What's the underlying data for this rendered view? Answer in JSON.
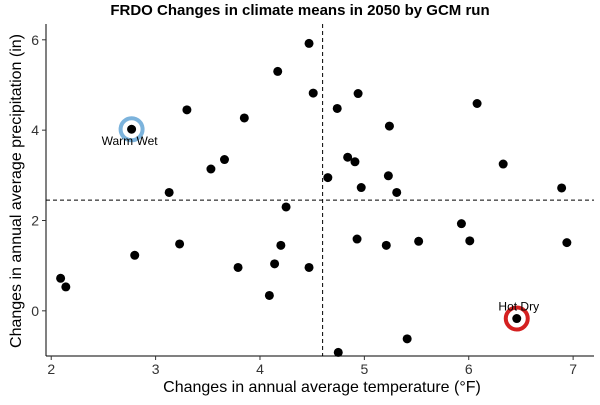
{
  "chart_data": {
    "type": "scatter",
    "title": "FRDO Changes in climate means in 2050 by GCM run",
    "xlabel": "Changes in annual average temperature (°F)",
    "ylabel": "Changes in annual average precipitation (in)",
    "xlim": [
      1.95,
      7.2
    ],
    "ylim": [
      -1.0,
      6.35
    ],
    "xticks": [
      2,
      3,
      4,
      5,
      6,
      7
    ],
    "yticks": [
      0,
      2,
      4,
      6
    ],
    "grid": false,
    "reference_lines": {
      "vline_x": 4.6,
      "hline_y": 2.45
    },
    "point_color": "#000000",
    "points": [
      {
        "x": 2.09,
        "y": 0.72
      },
      {
        "x": 2.14,
        "y": 0.53
      },
      {
        "x": 2.8,
        "y": 1.23
      },
      {
        "x": 3.13,
        "y": 2.62
      },
      {
        "x": 3.23,
        "y": 1.48
      },
      {
        "x": 3.3,
        "y": 4.45
      },
      {
        "x": 3.53,
        "y": 3.14
      },
      {
        "x": 3.66,
        "y": 3.35
      },
      {
        "x": 3.79,
        "y": 0.96
      },
      {
        "x": 3.85,
        "y": 4.27
      },
      {
        "x": 4.09,
        "y": 0.34
      },
      {
        "x": 4.14,
        "y": 1.04
      },
      {
        "x": 4.17,
        "y": 5.3
      },
      {
        "x": 4.2,
        "y": 1.45
      },
      {
        "x": 4.25,
        "y": 2.3
      },
      {
        "x": 4.47,
        "y": 5.92
      },
      {
        "x": 4.47,
        "y": 0.96
      },
      {
        "x": 4.51,
        "y": 4.82
      },
      {
        "x": 4.65,
        "y": 2.95
      },
      {
        "x": 4.74,
        "y": 4.48
      },
      {
        "x": 4.75,
        "y": -0.92
      },
      {
        "x": 4.84,
        "y": 3.4
      },
      {
        "x": 4.91,
        "y": 3.3
      },
      {
        "x": 4.93,
        "y": 1.59
      },
      {
        "x": 4.94,
        "y": 4.81
      },
      {
        "x": 4.97,
        "y": 2.73
      },
      {
        "x": 5.21,
        "y": 1.45
      },
      {
        "x": 5.23,
        "y": 2.99
      },
      {
        "x": 5.24,
        "y": 4.09
      },
      {
        "x": 5.31,
        "y": 2.62
      },
      {
        "x": 5.41,
        "y": -0.62
      },
      {
        "x": 5.52,
        "y": 1.54
      },
      {
        "x": 5.93,
        "y": 1.93
      },
      {
        "x": 6.01,
        "y": 1.55
      },
      {
        "x": 6.08,
        "y": 4.59
      },
      {
        "x": 6.33,
        "y": 3.25
      },
      {
        "x": 6.89,
        "y": 2.72
      },
      {
        "x": 6.94,
        "y": 1.51
      },
      {
        "x": 2.77,
        "y": 4.02
      },
      {
        "x": 6.46,
        "y": -0.17
      }
    ],
    "highlights": [
      {
        "label": "Warm Wet",
        "x": 2.77,
        "y": 4.02,
        "color": "#7cb3dc"
      },
      {
        "label": "Hot Dry",
        "x": 6.46,
        "y": -0.17,
        "color": "#d42020"
      }
    ]
  }
}
